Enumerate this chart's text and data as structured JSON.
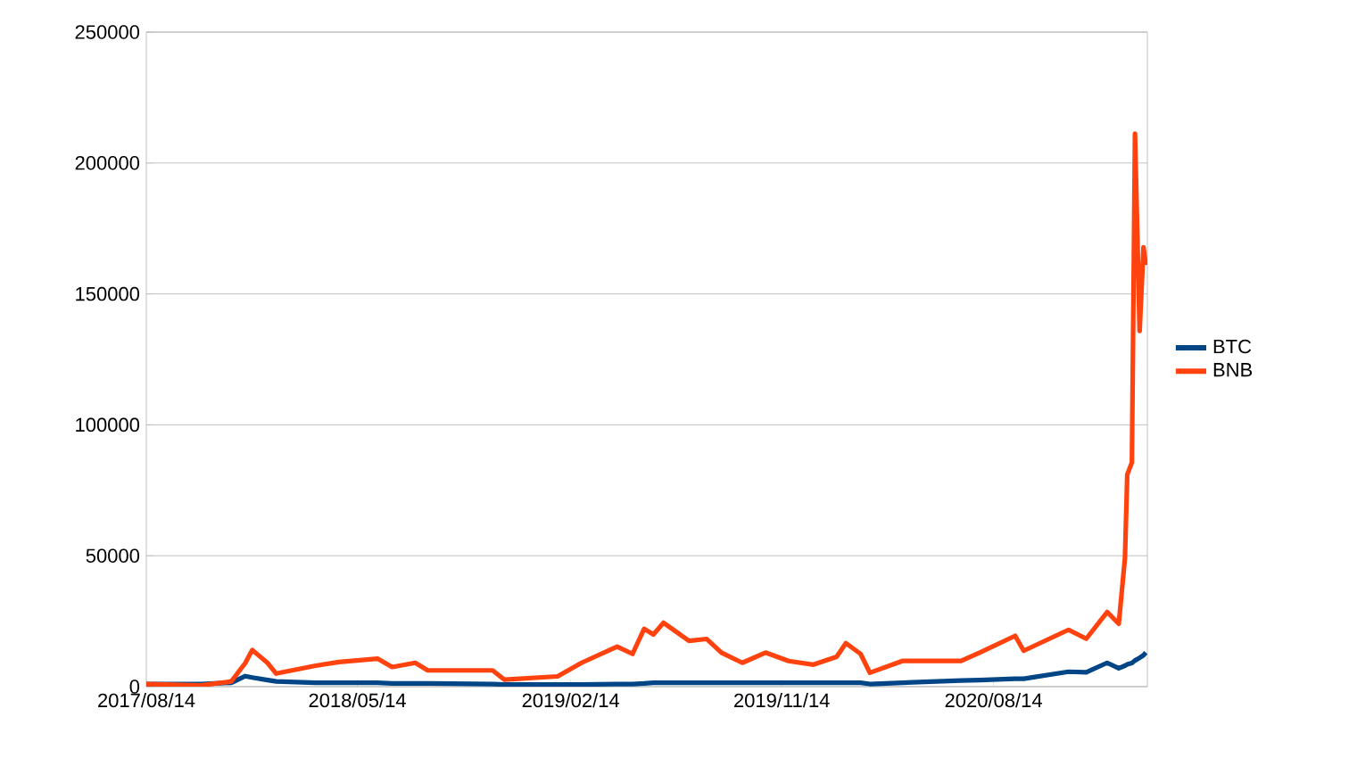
{
  "chart_data": {
    "type": "line",
    "x": [
      "2017-08-14",
      "2017-10-24",
      "2017-12-02",
      "2017-12-20",
      "2017-12-29",
      "2018-01-18",
      "2018-01-29",
      "2018-03-21",
      "2018-04-20",
      "2018-06-09",
      "2018-06-28",
      "2018-07-28",
      "2018-08-13",
      "2018-11-05",
      "2018-11-20",
      "2019-01-28",
      "2019-02-28",
      "2019-04-15",
      "2019-05-05",
      "2019-05-20",
      "2019-06-01",
      "2019-06-14",
      "2019-07-17",
      "2019-08-09",
      "2019-08-28",
      "2019-09-24",
      "2019-10-24",
      "2019-11-23",
      "2019-12-25",
      "2020-01-24",
      "2020-02-05",
      "2020-02-24",
      "2020-03-07",
      "2020-04-18",
      "2020-07-03",
      "2020-07-27",
      "2020-09-11",
      "2020-09-22",
      "2020-11-19",
      "2020-12-12",
      "2021-01-08",
      "2021-01-23",
      "2021-01-31",
      "2021-02-03",
      "2021-02-09",
      "2021-02-13",
      "2021-02-19",
      "2021-02-24",
      "2021-02-27"
    ],
    "series": [
      {
        "name": "BTC",
        "color": "#004586",
        "values": [
          1000,
          1000,
          1500,
          4000,
          3500,
          2500,
          2000,
          1500,
          1500,
          1500,
          1200,
          1200,
          1200,
          1000,
          800,
          800,
          800,
          1000,
          1000,
          1200,
          1500,
          1500,
          1500,
          1500,
          1500,
          1500,
          1500,
          1500,
          1500,
          1500,
          1500,
          1500,
          1000,
          1500,
          2300,
          2500,
          3000,
          3000,
          5700,
          5500,
          9100,
          7000,
          8000,
          8500,
          9000,
          10000,
          11000,
          12000,
          13000
        ]
      },
      {
        "name": "BNB",
        "color": "#ff420e",
        "values": [
          1000,
          500,
          2000,
          9000,
          14000,
          9000,
          5000,
          8000,
          9400,
          10700,
          7500,
          9100,
          6200,
          6200,
          2700,
          3900,
          9100,
          15300,
          12500,
          22100,
          19900,
          24400,
          17500,
          18200,
          13000,
          9100,
          13000,
          9800,
          8400,
          11400,
          16600,
          12500,
          5300,
          9800,
          9800,
          13000,
          19400,
          13700,
          21700,
          18300,
          28500,
          24000,
          49100,
          81000,
          85600,
          211200,
          135800,
          167800,
          161000
        ]
      }
    ],
    "xlim": [
      "2017-08-14",
      "2021-03-01"
    ],
    "xticks": [
      {
        "value": "2017-08-14",
        "label": "2017/08/14"
      },
      {
        "value": "2018-05-14",
        "label": "2018/05/14"
      },
      {
        "value": "2019-02-14",
        "label": "2019/02/14"
      },
      {
        "value": "2019-11-14",
        "label": "2019/11/14"
      },
      {
        "value": "2020-08-14",
        "label": "2020/08/14"
      }
    ],
    "ylim": [
      0,
      250000
    ],
    "yticks": [
      0,
      50000,
      100000,
      150000,
      200000,
      250000
    ],
    "grid": "y",
    "legend": "right",
    "marker": "none",
    "line_style": "solid"
  }
}
